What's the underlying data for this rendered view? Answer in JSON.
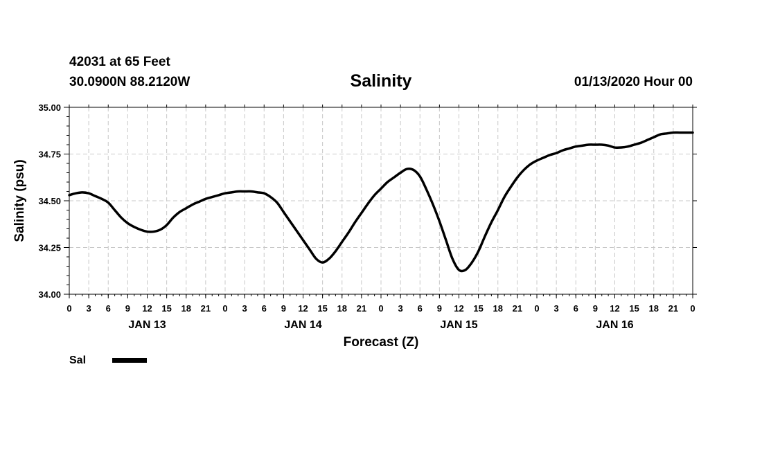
{
  "header": {
    "station": "42031 at 65 Feet",
    "coords": "30.0900N 88.2120W",
    "title": "Salinity",
    "datetime": "01/13/2020 Hour 00"
  },
  "chart_data": {
    "type": "line",
    "title": "Salinity",
    "xlabel": "Forecast (Z)",
    "ylabel": "Salinity (psu)",
    "x_unit": "hours from 01/13/2020 00Z",
    "xlim": [
      0,
      96
    ],
    "ylim": [
      34.0,
      35.0
    ],
    "y_ticks": [
      "34.00",
      "34.25",
      "34.50",
      "34.75",
      "35.00"
    ],
    "x_tick_labels": [
      "0",
      "3",
      "6",
      "9",
      "12",
      "15",
      "18",
      "21",
      "0",
      "3",
      "6",
      "9",
      "12",
      "15",
      "18",
      "21",
      "0",
      "3",
      "6",
      "9",
      "12",
      "15",
      "18",
      "21",
      "0",
      "3",
      "6",
      "9",
      "12",
      "15",
      "18",
      "21",
      "0"
    ],
    "day_labels": [
      "JAN 13",
      "JAN 14",
      "JAN 15",
      "JAN 16"
    ],
    "grid": true,
    "legend_position": "bottom-left",
    "series": [
      {
        "name": "Sal",
        "color": "#000000",
        "x": [
          0,
          1,
          2,
          3,
          4,
          5,
          6,
          7,
          8,
          9,
          10,
          11,
          12,
          13,
          14,
          15,
          16,
          17,
          18,
          19,
          20,
          21,
          22,
          23,
          24,
          25,
          26,
          27,
          28,
          29,
          30,
          31,
          32,
          33,
          34,
          35,
          36,
          37,
          38,
          39,
          40,
          41,
          42,
          43,
          44,
          45,
          46,
          47,
          48,
          49,
          50,
          51,
          52,
          53,
          54,
          55,
          56,
          57,
          58,
          59,
          60,
          61,
          62,
          63,
          64,
          65,
          66,
          67,
          68,
          69,
          70,
          71,
          72,
          73,
          74,
          75,
          76,
          77,
          78,
          79,
          80,
          81,
          82,
          83,
          84,
          85,
          86,
          87,
          88,
          89,
          90,
          91,
          92,
          93,
          94,
          95,
          96
        ],
        "y": [
          34.53,
          34.54,
          34.545,
          34.54,
          34.525,
          34.51,
          34.49,
          34.45,
          34.41,
          34.38,
          34.36,
          34.345,
          34.335,
          34.335,
          34.345,
          34.37,
          34.41,
          34.44,
          34.46,
          34.48,
          34.495,
          34.51,
          34.52,
          34.53,
          34.54,
          34.545,
          34.55,
          34.55,
          34.55,
          34.545,
          34.54,
          34.52,
          34.49,
          34.44,
          34.39,
          34.34,
          34.29,
          34.24,
          34.19,
          34.17,
          34.19,
          34.23,
          34.28,
          34.33,
          34.385,
          34.435,
          34.485,
          34.53,
          34.565,
          34.6,
          34.625,
          34.65,
          34.67,
          34.665,
          34.63,
          34.56,
          34.48,
          34.39,
          34.29,
          34.19,
          34.13,
          34.13,
          34.17,
          34.23,
          34.31,
          34.385,
          34.45,
          34.52,
          34.575,
          34.625,
          34.665,
          34.695,
          34.715,
          34.73,
          34.745,
          34.755,
          34.77,
          34.78,
          34.79,
          34.795,
          34.8,
          34.8,
          34.8,
          34.795,
          34.785,
          34.785,
          34.79,
          34.8,
          34.81,
          34.825,
          34.84,
          34.855,
          34.86,
          34.865,
          34.865,
          34.865,
          34.865
        ]
      }
    ]
  }
}
